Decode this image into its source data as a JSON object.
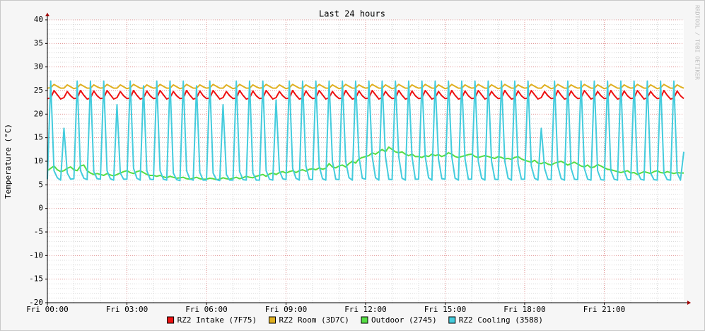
{
  "chart_data": {
    "type": "line",
    "title": "Last 24 hours",
    "y_label": "Temperature (°C)",
    "watermark": "RRDTOOL / TOBI OETIKER",
    "xlim": [
      0,
      24
    ],
    "ylim": [
      -20,
      40
    ],
    "xticks": [
      {
        "value": 0,
        "label": "Fri 00:00"
      },
      {
        "value": 3,
        "label": "Fri 03:00"
      },
      {
        "value": 6,
        "label": "Fri 06:00"
      },
      {
        "value": 9,
        "label": "Fri 09:00"
      },
      {
        "value": 12,
        "label": "Fri 12:00"
      },
      {
        "value": 15,
        "label": "Fri 15:00"
      },
      {
        "value": 18,
        "label": "Fri 18:00"
      },
      {
        "value": 21,
        "label": "Fri 21:00"
      }
    ],
    "xminorticks": [
      1,
      2,
      4,
      5,
      7,
      8,
      10,
      11,
      13,
      14,
      16,
      17,
      19,
      20,
      22,
      23
    ],
    "yticks": [
      -20,
      -15,
      -10,
      -5,
      0,
      5,
      10,
      15,
      20,
      25,
      30,
      35,
      40
    ],
    "yminorticks": [
      -19,
      -18,
      -17,
      -16,
      -14,
      -13,
      -12,
      -11,
      -9,
      -8,
      -7,
      -6,
      -4,
      -3,
      -2,
      -1,
      1,
      2,
      3,
      4,
      6,
      7,
      8,
      9,
      11,
      12,
      13,
      14,
      16,
      17,
      18,
      19,
      21,
      22,
      23,
      24,
      26,
      27,
      28,
      29,
      31,
      32,
      33,
      34,
      36,
      37,
      38,
      39
    ],
    "grid": true,
    "x": [
      0,
      0.125,
      0.25,
      0.375,
      0.5,
      0.625,
      0.75,
      0.875,
      1,
      1.125,
      1.25,
      1.375,
      1.5,
      1.625,
      1.75,
      1.875,
      2,
      2.125,
      2.25,
      2.375,
      2.5,
      2.625,
      2.75,
      2.875,
      3,
      3.125,
      3.25,
      3.375,
      3.5,
      3.625,
      3.75,
      3.875,
      4,
      4.125,
      4.25,
      4.375,
      4.5,
      4.625,
      4.75,
      4.875,
      5,
      5.125,
      5.25,
      5.375,
      5.5,
      5.625,
      5.75,
      5.875,
      6,
      6.125,
      6.25,
      6.375,
      6.5,
      6.625,
      6.75,
      6.875,
      7,
      7.125,
      7.25,
      7.375,
      7.5,
      7.625,
      7.75,
      7.875,
      8,
      8.125,
      8.25,
      8.375,
      8.5,
      8.625,
      8.75,
      8.875,
      9,
      9.125,
      9.25,
      9.375,
      9.5,
      9.625,
      9.75,
      9.875,
      10,
      10.125,
      10.25,
      10.375,
      10.5,
      10.625,
      10.75,
      10.875,
      11,
      11.125,
      11.25,
      11.375,
      11.5,
      11.625,
      11.75,
      11.875,
      12,
      12.125,
      12.25,
      12.375,
      12.5,
      12.625,
      12.75,
      12.875,
      13,
      13.125,
      13.25,
      13.375,
      13.5,
      13.625,
      13.75,
      13.875,
      14,
      14.125,
      14.25,
      14.375,
      14.5,
      14.625,
      14.75,
      14.875,
      15,
      15.125,
      15.25,
      15.375,
      15.5,
      15.625,
      15.75,
      15.875,
      16,
      16.125,
      16.25,
      16.375,
      16.5,
      16.625,
      16.75,
      16.875,
      17,
      17.125,
      17.25,
      17.375,
      17.5,
      17.625,
      17.75,
      17.875,
      18,
      18.125,
      18.25,
      18.375,
      18.5,
      18.625,
      18.75,
      18.875,
      19,
      19.125,
      19.25,
      19.375,
      19.5,
      19.625,
      19.75,
      19.875,
      20,
      20.125,
      20.25,
      20.375,
      20.5,
      20.625,
      20.75,
      20.875,
      21,
      21.125,
      21.25,
      21.375,
      21.5,
      21.625,
      21.75,
      21.875,
      22,
      22.125,
      22.25,
      22.375,
      22.5,
      22.625,
      22.75,
      22.875,
      23,
      23.125,
      23.25,
      23.375,
      23.5,
      23.625,
      23.75,
      23.875,
      24
    ],
    "series": [
      {
        "name": "RZ2 Intake (7F75)",
        "color": "#ee1111",
        "values": [
          23.3,
          23.4,
          25,
          24.1,
          23.2,
          23.5,
          24.8,
          23.9,
          23.3,
          23.4,
          25,
          24,
          23.2,
          23.4,
          24.9,
          23.9,
          23.3,
          23.4,
          25,
          24.1,
          23.2,
          23.5,
          24.8,
          23.9,
          23.3,
          23.4,
          25,
          24,
          23.2,
          23.4,
          24.9,
          23.9,
          23.3,
          23.4,
          25,
          24.1,
          23.2,
          23.5,
          24.8,
          23.9,
          23.3,
          23.4,
          25,
          24,
          23.2,
          23.4,
          24.9,
          23.9,
          23.3,
          23.4,
          25,
          24.1,
          23.2,
          23.5,
          24.8,
          23.9,
          23.3,
          23.4,
          25,
          24,
          23.2,
          23.4,
          24.9,
          23.9,
          23.3,
          23.4,
          25,
          24.1,
          23.2,
          23.5,
          24.8,
          23.9,
          23.3,
          23.4,
          25,
          24,
          23.2,
          23.4,
          24.9,
          23.9,
          23.3,
          23.4,
          25,
          24.1,
          23.2,
          23.5,
          24.8,
          23.9,
          23.3,
          23.4,
          25,
          24,
          23.2,
          23.4,
          24.9,
          23.9,
          23.3,
          23.4,
          25,
          24.1,
          23.2,
          23.5,
          24.8,
          23.9,
          23.3,
          23.4,
          25,
          24,
          23.2,
          23.4,
          24.9,
          23.9,
          23.3,
          23.4,
          25,
          24.1,
          23.2,
          23.5,
          24.8,
          23.9,
          23.3,
          23.4,
          25,
          24,
          23.2,
          23.4,
          24.9,
          23.9,
          23.3,
          23.4,
          25,
          24.1,
          23.2,
          23.5,
          24.8,
          23.9,
          23.3,
          23.4,
          25,
          24,
          23.2,
          23.4,
          24.9,
          23.9,
          23.3,
          23.4,
          25,
          24.1,
          23.2,
          23.5,
          24.8,
          23.9,
          23.3,
          23.4,
          25,
          24,
          23.2,
          23.4,
          24.9,
          23.9,
          23.3,
          23.4,
          25,
          24.1,
          23.2,
          23.5,
          24.8,
          23.9,
          23.3,
          23.4,
          25,
          24,
          23.2,
          23.4,
          24.9,
          23.9,
          23.3,
          23.4,
          25,
          24.1,
          23.2,
          23.5,
          24.8,
          23.9,
          23.3,
          23.4,
          25,
          24,
          23.2,
          23.4,
          24.9,
          23.9,
          23.3
        ]
      },
      {
        "name": "RZ2 Room (3D7C)",
        "color": "#e0b020",
        "values": [
          25.5,
          25.6,
          26.3,
          25.9,
          25.5,
          25.5,
          26.2,
          25.8,
          25.4,
          25.6,
          26.3,
          25.9,
          25.5,
          25.5,
          26.2,
          25.8,
          25.5,
          25.6,
          26.3,
          25.9,
          25.5,
          25.5,
          26.2,
          25.8,
          25.4,
          25.6,
          26.3,
          25.9,
          25.5,
          25.5,
          26.2,
          25.8,
          25.5,
          25.6,
          26.3,
          25.9,
          25.5,
          25.5,
          26.2,
          25.8,
          25.4,
          25.6,
          26.3,
          25.9,
          25.5,
          25.5,
          26.2,
          25.8,
          25.5,
          25.6,
          26.3,
          25.9,
          25.5,
          25.5,
          26.2,
          25.8,
          25.4,
          25.6,
          26.3,
          25.9,
          25.5,
          25.5,
          26.2,
          25.8,
          25.5,
          25.6,
          26.3,
          25.9,
          25.5,
          25.5,
          26.2,
          25.8,
          25.4,
          25.6,
          26.3,
          25.9,
          25.5,
          25.5,
          26.2,
          25.8,
          25.5,
          25.6,
          26.3,
          25.9,
          25.5,
          25.5,
          26.2,
          25.8,
          25.4,
          25.6,
          26.3,
          25.9,
          25.5,
          25.5,
          26.2,
          25.8,
          25.5,
          25.6,
          26.3,
          25.9,
          25.5,
          25.5,
          26.2,
          25.8,
          25.4,
          25.6,
          26.3,
          25.9,
          25.5,
          25.5,
          26.2,
          25.8,
          25.5,
          25.6,
          26.3,
          25.9,
          25.5,
          25.5,
          26.2,
          25.8,
          25.4,
          25.6,
          26.3,
          25.9,
          25.5,
          25.5,
          26.2,
          25.8,
          25.5,
          25.6,
          26.3,
          25.9,
          25.5,
          25.5,
          26.2,
          25.8,
          25.4,
          25.6,
          26.3,
          25.9,
          25.5,
          25.5,
          26.2,
          25.8,
          25.5,
          25.6,
          26.3,
          25.9,
          25.5,
          25.5,
          26.2,
          25.8,
          25.4,
          25.6,
          26.3,
          25.9,
          25.5,
          25.5,
          26.2,
          25.8,
          25.5,
          25.6,
          26.3,
          25.9,
          25.5,
          25.5,
          26.2,
          25.8,
          25.4,
          25.6,
          26.3,
          25.9,
          25.5,
          25.5,
          26.2,
          25.8,
          25.5,
          25.6,
          26.3,
          25.9,
          25.5,
          25.5,
          26.2,
          25.8,
          25.4,
          25.6,
          26.3,
          25.9,
          25.5,
          25.5,
          26.2,
          25.8,
          25.5
        ]
      },
      {
        "name": "Outdoor (2745)",
        "color": "#55dd44",
        "values": [
          8,
          8.5,
          9,
          8.2,
          7.8,
          8,
          8.5,
          8.8,
          8.2,
          8,
          9,
          9.2,
          8,
          7.5,
          7.2,
          7.4,
          7.2,
          7,
          7.4,
          7.1,
          6.9,
          7.2,
          7.5,
          7.8,
          8,
          7.6,
          7.4,
          7.8,
          8,
          7.6,
          7.2,
          7,
          7,
          6.8,
          7,
          6.7,
          6.5,
          6.8,
          6.6,
          6.4,
          6.5,
          6.6,
          6.3,
          6.2,
          6.4,
          6.6,
          6.3,
          6.2,
          6.2,
          6.4,
          6.3,
          6.1,
          6.2,
          6.5,
          6.3,
          6.2,
          6.4,
          6.6,
          6.3,
          6.5,
          6.8,
          6.6,
          6.5,
          6.8,
          7,
          7.2,
          6.8,
          7.3,
          7.5,
          7.2,
          7.6,
          7.8,
          7.5,
          7.8,
          8,
          7.6,
          8,
          8.2,
          7.9,
          8.3,
          8.4,
          8.2,
          8.6,
          8.3,
          8.5,
          9.5,
          8.8,
          8.6,
          9,
          9.2,
          8.8,
          9.5,
          10,
          9.6,
          10.5,
          10.8,
          11,
          11.2,
          11.8,
          11.5,
          12,
          12.5,
          12,
          13,
          12.5,
          12,
          11.8,
          12,
          11.5,
          11.2,
          11.5,
          11,
          11,
          10.8,
          11.2,
          11,
          11.5,
          11.2,
          11.4,
          11,
          11.3,
          11.8,
          11.5,
          11,
          10.8,
          11,
          11.2,
          11.4,
          11.5,
          11,
          10.8,
          11,
          11.2,
          11,
          10.8,
          10.6,
          11,
          10.8,
          10.5,
          10.6,
          10.4,
          10.8,
          11,
          10.5,
          10.2,
          10,
          9.8,
          10.2,
          9.6,
          9.5,
          9.8,
          9.4,
          9.2,
          9.6,
          9.8,
          10,
          9.6,
          9.2,
          9.5,
          9.8,
          9.4,
          9,
          8.8,
          9.2,
          8.6,
          8.8,
          9.3,
          9,
          8.6,
          8.3,
          8.2,
          8,
          7.8,
          7.6,
          7.8,
          8,
          7.5,
          7.6,
          7.2,
          7.5,
          7.8,
          7.6,
          7.4,
          7.8,
          8,
          7.6,
          7.5,
          7.8,
          7.6,
          7.4,
          7.6,
          7.5,
          7.5
        ]
      },
      {
        "name": "RZ2 Cooling (3588)",
        "color": "#44ccdd",
        "values": [
          6.2,
          27,
          8,
          6.5,
          6,
          17,
          7.5,
          6.2,
          6.3,
          27,
          8,
          6.4,
          6.1,
          27,
          7.8,
          6.3,
          6.2,
          27,
          8,
          6.3,
          6,
          22,
          7.5,
          6.2,
          6.2,
          27,
          8.5,
          6.4,
          6,
          26,
          8,
          6.2,
          6.1,
          27,
          8,
          6.2,
          6,
          27,
          7.5,
          6.1,
          5.9,
          27,
          8,
          6.2,
          6,
          26,
          7.6,
          6,
          6,
          27,
          7.5,
          6.1,
          5.9,
          22,
          7.2,
          6,
          6,
          27,
          7.8,
          6.1,
          6,
          27,
          7.5,
          6,
          6,
          27,
          8,
          6.2,
          6,
          23,
          8,
          6.3,
          6.1,
          27,
          8.5,
          6.4,
          6,
          27,
          9,
          6.2,
          6.1,
          27,
          9,
          6.3,
          6,
          27,
          10,
          6.2,
          6.1,
          27,
          10,
          6.5,
          6,
          27,
          11,
          6.4,
          6.2,
          27,
          11,
          6.5,
          6,
          27,
          11,
          6.2,
          6.1,
          27,
          11,
          6.4,
          6,
          27,
          11,
          6.2,
          6.2,
          27,
          11,
          6.5,
          6,
          27,
          10.5,
          6.3,
          6.2,
          27,
          11,
          6.4,
          6,
          27,
          10.5,
          6.2,
          6.2,
          27,
          10,
          6.4,
          6,
          27,
          10,
          6.2,
          6.1,
          27,
          10,
          6.4,
          6,
          27,
          9.5,
          6.2,
          6.2,
          27,
          9,
          6.4,
          6,
          17,
          8.5,
          6.2,
          6.1,
          27,
          9,
          6.3,
          6,
          27,
          8.5,
          6.2,
          6.1,
          27,
          8.5,
          6.2,
          6,
          27,
          8,
          6.1,
          6,
          27,
          8,
          6.2,
          6,
          27,
          8,
          6.1,
          6.1,
          27,
          7.8,
          6.2,
          6,
          27,
          7.5,
          6.1,
          6,
          27,
          7.5,
          6.1,
          6,
          27,
          7.5,
          6,
          12
        ]
      }
    ]
  }
}
